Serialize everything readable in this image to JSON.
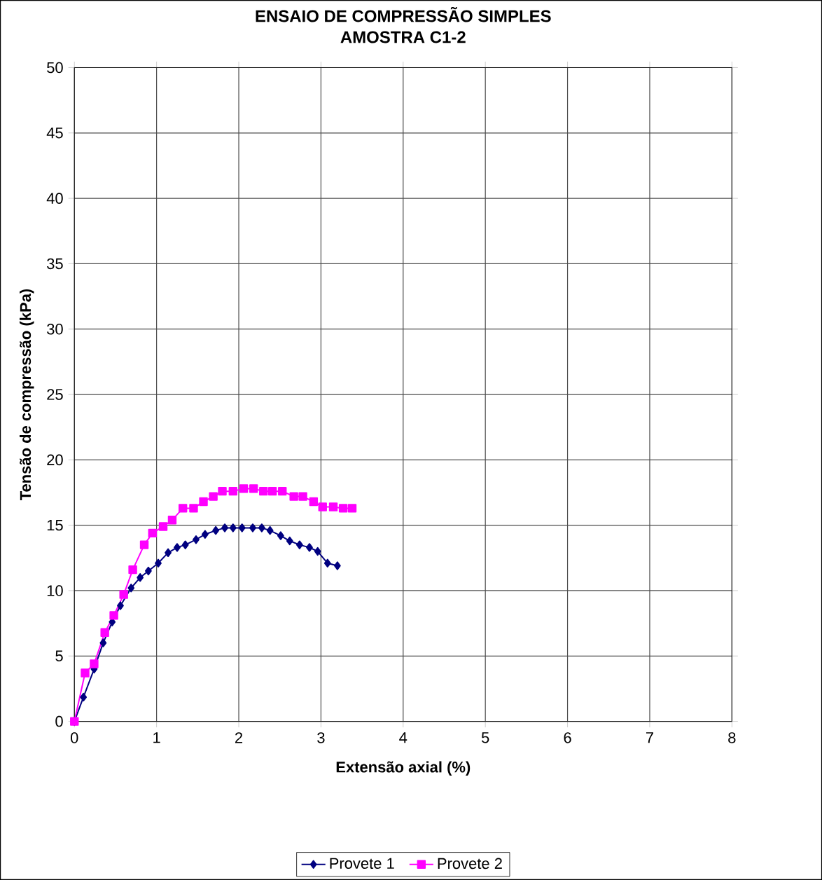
{
  "chart_data": {
    "type": "line",
    "title": "ENSAIO DE COMPRESSÃO SIMPLES",
    "subtitle": "AMOSTRA C1-2",
    "xlabel": "Extensão axial (%)",
    "ylabel": "Tensão de compressão (kPa)",
    "xlim": [
      0,
      8
    ],
    "xticks": [
      0,
      1,
      2,
      3,
      4,
      5,
      6,
      7,
      8
    ],
    "ylim": [
      0,
      50
    ],
    "yticks": [
      0,
      5,
      10,
      15,
      20,
      25,
      30,
      35,
      40,
      45,
      50
    ],
    "grid": true,
    "legend": "bottom",
    "series": [
      {
        "name": "Provete 1",
        "color": "#000080",
        "marker": "diamond",
        "x": [
          0,
          0.11,
          0.24,
          0.35,
          0.46,
          0.56,
          0.69,
          0.8,
          0.9,
          1.02,
          1.14,
          1.25,
          1.35,
          1.48,
          1.59,
          1.72,
          1.83,
          1.93,
          2.04,
          2.17,
          2.28,
          2.38,
          2.51,
          2.62,
          2.74,
          2.86,
          2.96,
          3.08,
          3.2
        ],
        "values": [
          0,
          1.85,
          4.0,
          6.0,
          7.6,
          8.85,
          10.2,
          11.0,
          11.5,
          12.1,
          12.9,
          13.3,
          13.5,
          13.9,
          14.3,
          14.6,
          14.8,
          14.8,
          14.8,
          14.8,
          14.8,
          14.6,
          14.2,
          13.8,
          13.5,
          13.3,
          13.0,
          12.1,
          11.9
        ]
      },
      {
        "name": "Provete 2",
        "color": "#ff00ff",
        "marker": "square",
        "x": [
          0,
          0.13,
          0.24,
          0.37,
          0.48,
          0.6,
          0.71,
          0.85,
          0.95,
          1.08,
          1.19,
          1.32,
          1.45,
          1.57,
          1.69,
          1.8,
          1.93,
          2.06,
          2.18,
          2.3,
          2.41,
          2.53,
          2.67,
          2.78,
          2.91,
          3.02,
          3.15,
          3.27,
          3.38
        ],
        "values": [
          0,
          3.7,
          4.4,
          6.8,
          8.1,
          9.7,
          11.6,
          13.5,
          14.4,
          14.9,
          15.4,
          16.3,
          16.3,
          16.8,
          17.2,
          17.6,
          17.6,
          17.8,
          17.8,
          17.6,
          17.6,
          17.6,
          17.2,
          17.2,
          16.8,
          16.4,
          16.4,
          16.3,
          16.3
        ]
      }
    ]
  }
}
